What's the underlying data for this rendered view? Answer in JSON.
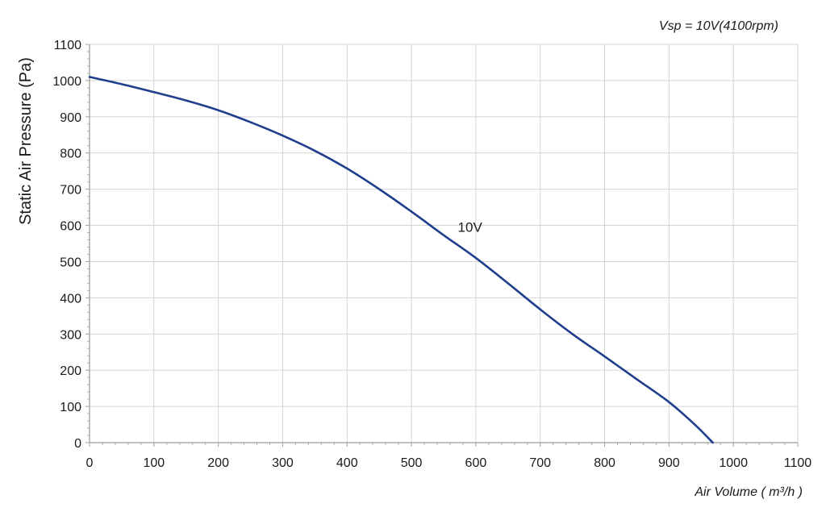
{
  "chart_data": {
    "type": "line",
    "title": "Vsp = 10V(4100rpm)",
    "xlabel": "Air Volume ( m³/h )",
    "ylabel": "Static Air Pressure  (Pa)",
    "xlim": [
      0,
      1100
    ],
    "ylim": [
      0,
      1100
    ],
    "x_ticks": [
      "0",
      "100",
      "200",
      "300",
      "400",
      "500",
      "600",
      "700",
      "800",
      "900",
      "1000",
      "1100"
    ],
    "y_ticks": [
      "0",
      "100",
      "200",
      "300",
      "400",
      "500",
      "600",
      "700",
      "800",
      "900",
      "1000",
      "1100"
    ],
    "grid": true,
    "line_color": "#1f3f8c",
    "series": [
      {
        "name": "10V",
        "x": [
          0,
          50,
          100,
          150,
          200,
          250,
          300,
          350,
          400,
          450,
          500,
          550,
          600,
          650,
          700,
          750,
          800,
          850,
          900,
          940,
          968
        ],
        "y": [
          1010,
          990,
          968,
          945,
          918,
          885,
          848,
          806,
          757,
          700,
          638,
          573,
          510,
          440,
          368,
          300,
          238,
          175,
          112,
          50,
          0
        ]
      }
    ],
    "annotations": [
      {
        "text": "10V",
        "x": 572,
        "y": 582
      }
    ]
  }
}
